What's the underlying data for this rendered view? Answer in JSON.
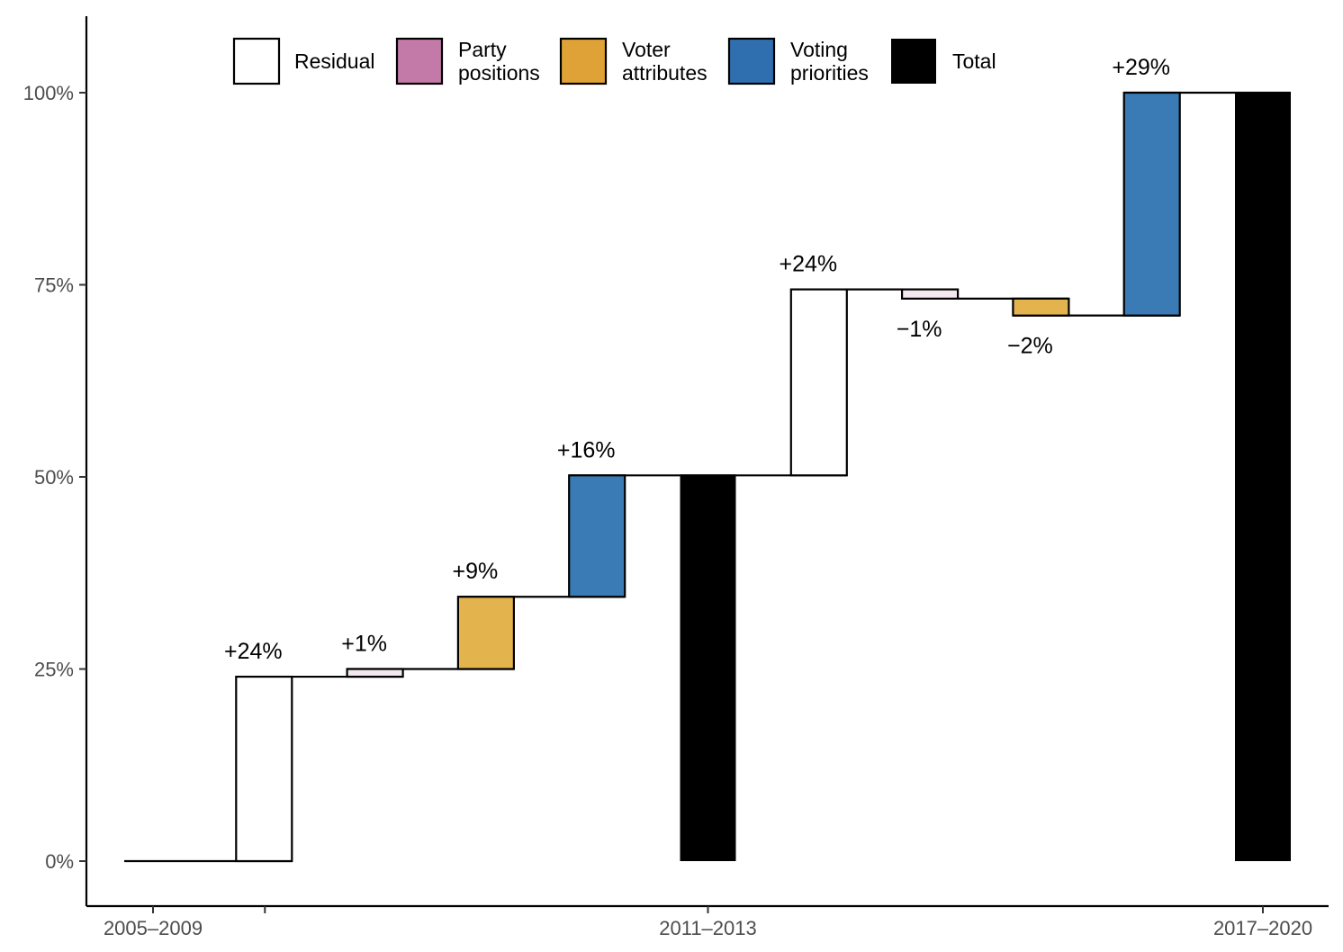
{
  "chart_data": {
    "type": "bar",
    "subtype": "waterfall",
    "title": "",
    "xlabel": "",
    "ylabel": "",
    "ylim": [
      -0.06,
      1.1
    ],
    "y_ticks": [
      {
        "value": 0,
        "label": "0%"
      },
      {
        "value": 0.25,
        "label": "25%"
      },
      {
        "value": 0.5,
        "label": "50%"
      },
      {
        "value": 0.75,
        "label": "75%"
      },
      {
        "value": 1.0,
        "label": "100%"
      }
    ],
    "x_ticks": [
      {
        "pos": 0,
        "label": "2005–2009"
      },
      {
        "pos": 5,
        "label": "2011–2013"
      },
      {
        "pos": 10,
        "label": "2017–2020"
      }
    ],
    "extra_tick_positions": [
      1
    ],
    "legend": {
      "placement": "top",
      "items": [
        {
          "key": "residual",
          "label": [
            "Residual"
          ],
          "color": "#ffffff"
        },
        {
          "key": "party",
          "label": [
            "Party",
            "positions"
          ],
          "color": "#c47aa8"
        },
        {
          "key": "voter",
          "label": [
            "Voter",
            "attributes"
          ],
          "color": "#dfa236"
        },
        {
          "key": "priorities",
          "label": [
            "Voting",
            "priorities"
          ],
          "color": "#2f6fb0"
        },
        {
          "key": "total",
          "label": [
            "Total"
          ],
          "color": "#000000"
        }
      ]
    },
    "bars": [
      {
        "pos": 0,
        "component": "start",
        "start": 0,
        "end": 0,
        "label": ""
      },
      {
        "pos": 1,
        "component": "residual",
        "start": 0,
        "end": 0.24,
        "label": "+24%",
        "fill": "#ffffff"
      },
      {
        "pos": 2,
        "component": "party",
        "start": 0.24,
        "end": 0.25,
        "label": "+1%",
        "fill": "#f4e8f0"
      },
      {
        "pos": 3,
        "component": "voter",
        "start": 0.25,
        "end": 0.344,
        "label": "+9%",
        "fill": "#e3b34e"
      },
      {
        "pos": 4,
        "component": "priorities",
        "start": 0.344,
        "end": 0.502,
        "label": "+16%",
        "fill": "#3a7ab5"
      },
      {
        "pos": 5,
        "component": "total",
        "start": 0,
        "end": 0.502,
        "label": "",
        "fill": "#000000"
      },
      {
        "pos": 6,
        "component": "residual",
        "start": 0.502,
        "end": 0.744,
        "label": "+24%",
        "fill": "#ffffff"
      },
      {
        "pos": 7,
        "component": "party",
        "start": 0.744,
        "end": 0.732,
        "label": "−1%",
        "fill": "#f4e8f0"
      },
      {
        "pos": 8,
        "component": "voter",
        "start": 0.732,
        "end": 0.71,
        "label": "−2%",
        "fill": "#e3b34e"
      },
      {
        "pos": 9,
        "component": "priorities",
        "start": 0.71,
        "end": 1.0,
        "label": "+29%",
        "fill": "#3a7ab5"
      },
      {
        "pos": 10,
        "component": "total",
        "start": 0,
        "end": 1.0,
        "label": "",
        "fill": "#000000"
      }
    ]
  }
}
